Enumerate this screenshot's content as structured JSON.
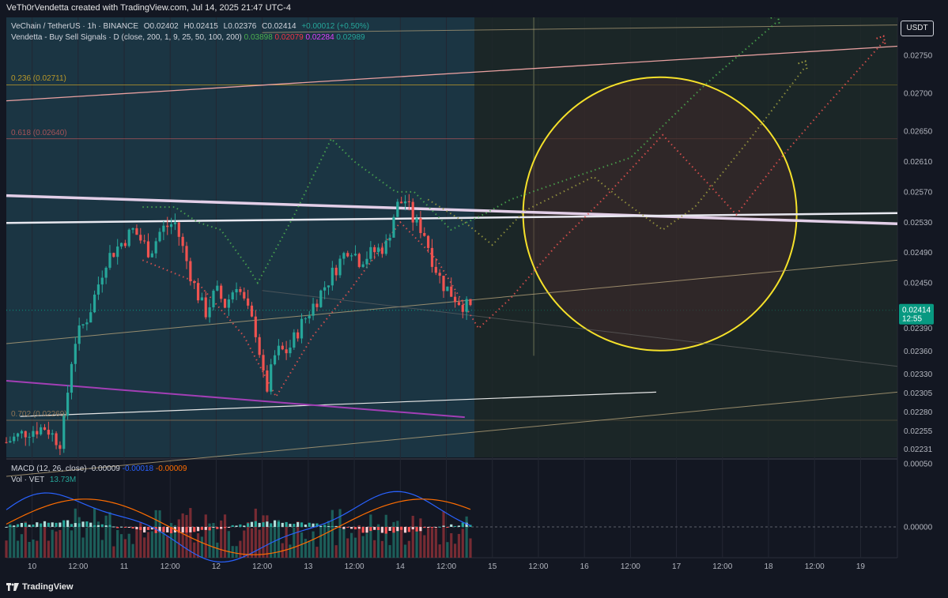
{
  "header": {
    "attribution": "VeTh0rVendetta created with TradingView.com, Jul 14, 2025 21:47 UTC-4"
  },
  "legend": {
    "symbol": "VeChain / TetherUS · 1h · BINANCE",
    "ohlc": {
      "open": "O0.02402",
      "high": "H0.02415",
      "low": "L0.02376",
      "close": "C0.02414",
      "change": "+0.00012 (+0.50%)"
    },
    "indicator": "Vendetta - Buy Sell Signals · D (close, 200, 1, 9, 25, 50, 100, 200)",
    "indicator_values": [
      {
        "text": "0.03898",
        "color": "#4caf50"
      },
      {
        "text": "0.02079",
        "color": "#f23645"
      },
      {
        "text": "0.02284",
        "color": "#e040fb"
      },
      {
        "text": "0.02989",
        "color": "#26a69a"
      }
    ]
  },
  "currency_button": "USDT",
  "fib_labels": [
    {
      "text": "0.236 (0.02711)",
      "value": 0.02711,
      "color": "#c9a227"
    },
    {
      "text": "0.618 (0.02640)",
      "value": 0.0264,
      "color": "#b5565a"
    },
    {
      "text": "0.702 (0.02269)",
      "value": 0.02269,
      "color": "#9a7a58"
    }
  ],
  "price_tag": {
    "price": "0.02414",
    "countdown": "12:55",
    "value": 0.02414,
    "color": "#089981"
  },
  "macd": {
    "title": "MACD (12, 26, close)",
    "values": [
      {
        "text": "-0.00009",
        "color": "#d1d4dc"
      },
      {
        "text": "-0.00018",
        "color": "#2962ff"
      },
      {
        "text": "-0.00009",
        "color": "#ff6d00"
      }
    ],
    "vol_label": "Vol · VET",
    "vol_value": "13.73M",
    "ticks": [
      {
        "label": "0.00050",
        "value": 0.0005
      },
      {
        "label": "0.00000",
        "value": 0
      }
    ]
  },
  "footer": {
    "brand": "TradingView"
  },
  "chart_data": {
    "type": "candlestick",
    "symbol": "VeChain / TetherUS",
    "interval": "1h",
    "exchange": "BINANCE",
    "y_axis": {
      "ticks": [
        "0.02750",
        "0.02700",
        "0.02650",
        "0.02610",
        "0.02570",
        "0.02530",
        "0.02490",
        "0.02450",
        "0.02390",
        "0.02360",
        "0.02330",
        "0.02305",
        "0.02280",
        "0.02255",
        "0.02231"
      ],
      "tick_values": [
        0.0275,
        0.027,
        0.0265,
        0.0261,
        0.0257,
        0.0253,
        0.0249,
        0.0245,
        0.0239,
        0.0236,
        0.0233,
        0.02305,
        0.0228,
        0.02255,
        0.02231
      ],
      "range": [
        0.0222,
        0.028
      ]
    },
    "x_axis": {
      "range_days": [
        9.72,
        19.4
      ],
      "ticks": [
        {
          "label": "10",
          "day": 10.0
        },
        {
          "label": "12:00",
          "day": 10.5
        },
        {
          "label": "11",
          "day": 11.0
        },
        {
          "label": "12:00",
          "day": 11.5
        },
        {
          "label": "12",
          "day": 12.0
        },
        {
          "label": "12:00",
          "day": 12.5
        },
        {
          "label": "13",
          "day": 13.0
        },
        {
          "label": "12:00",
          "day": 13.5
        },
        {
          "label": "14",
          "day": 14.0
        },
        {
          "label": "12:00",
          "day": 14.5
        },
        {
          "label": "15",
          "day": 15.0
        },
        {
          "label": "12:00",
          "day": 15.5
        },
        {
          "label": "16",
          "day": 16.0
        },
        {
          "label": "12:00",
          "day": 16.5
        },
        {
          "label": "17",
          "day": 17.0
        },
        {
          "label": "12:00",
          "day": 17.5
        },
        {
          "label": "18",
          "day": 18.0
        },
        {
          "label": "12:00",
          "day": 18.5
        },
        {
          "label": "19",
          "day": 19.0
        }
      ]
    },
    "price_path": [
      [
        9.72,
        0.0224
      ],
      [
        9.95,
        0.02255
      ],
      [
        10.15,
        0.0226
      ],
      [
        10.25,
        0.02245
      ],
      [
        10.32,
        0.0224
      ],
      [
        10.45,
        0.0237
      ],
      [
        10.62,
        0.0241
      ],
      [
        10.8,
        0.0248
      ],
      [
        10.95,
        0.025
      ],
      [
        11.1,
        0.0252
      ],
      [
        11.28,
        0.0249
      ],
      [
        11.4,
        0.0252
      ],
      [
        11.55,
        0.0253
      ],
      [
        11.65,
        0.0249
      ],
      [
        11.75,
        0.0245
      ],
      [
        11.88,
        0.0241
      ],
      [
        12.0,
        0.0244
      ],
      [
        12.1,
        0.0242
      ],
      [
        12.22,
        0.0245
      ],
      [
        12.35,
        0.0241
      ],
      [
        12.45,
        0.0238
      ],
      [
        12.5,
        0.0233
      ],
      [
        12.55,
        0.0231
      ],
      [
        12.65,
        0.0236
      ],
      [
        12.78,
        0.0236
      ],
      [
        12.9,
        0.0239
      ],
      [
        13.05,
        0.0242
      ],
      [
        13.15,
        0.0244
      ],
      [
        13.3,
        0.0247
      ],
      [
        13.45,
        0.025
      ],
      [
        13.55,
        0.0248
      ],
      [
        13.7,
        0.0249
      ],
      [
        13.85,
        0.025
      ],
      [
        13.95,
        0.0255
      ],
      [
        14.05,
        0.0256
      ],
      [
        14.15,
        0.0253
      ],
      [
        14.25,
        0.0252
      ],
      [
        14.35,
        0.0248
      ],
      [
        14.45,
        0.0245
      ],
      [
        14.6,
        0.0243
      ],
      [
        14.7,
        0.0242
      ],
      [
        14.8,
        0.02414
      ]
    ]
  },
  "colors": {
    "up": "#26a69a",
    "down": "#ef5350",
    "bg": "#131722",
    "highlight": "#1c3a48",
    "grid": "#1e222d"
  }
}
